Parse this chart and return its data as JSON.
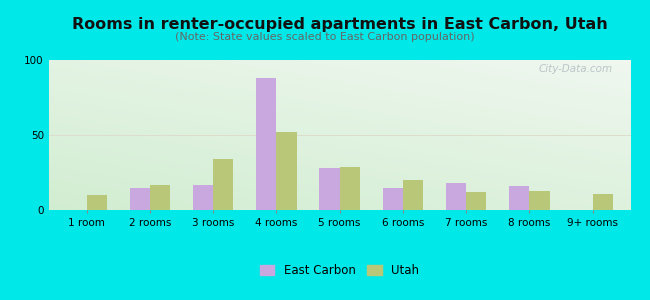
{
  "title": "Rooms in renter-occupied apartments in East Carbon, Utah",
  "subtitle": "(Note: State values scaled to East Carbon population)",
  "categories": [
    "1 room",
    "2 rooms",
    "3 rooms",
    "4 rooms",
    "5 rooms",
    "6 rooms",
    "7 rooms",
    "8 rooms",
    "9+ rooms"
  ],
  "east_carbon": [
    0,
    15,
    17,
    88,
    28,
    15,
    18,
    16,
    0
  ],
  "utah": [
    10,
    17,
    34,
    52,
    29,
    20,
    12,
    13,
    11
  ],
  "bar_color_ec": "#c9a8e0",
  "bar_color_ut": "#b8c878",
  "background_outer": "#00e8e8",
  "ylim": [
    0,
    100
  ],
  "yticks": [
    0,
    50,
    100
  ],
  "legend_ec": "East Carbon",
  "legend_ut": "Utah",
  "title_fontsize": 11.5,
  "subtitle_fontsize": 8,
  "axis_fontsize": 7.5,
  "watermark_text": "City-Data.com"
}
